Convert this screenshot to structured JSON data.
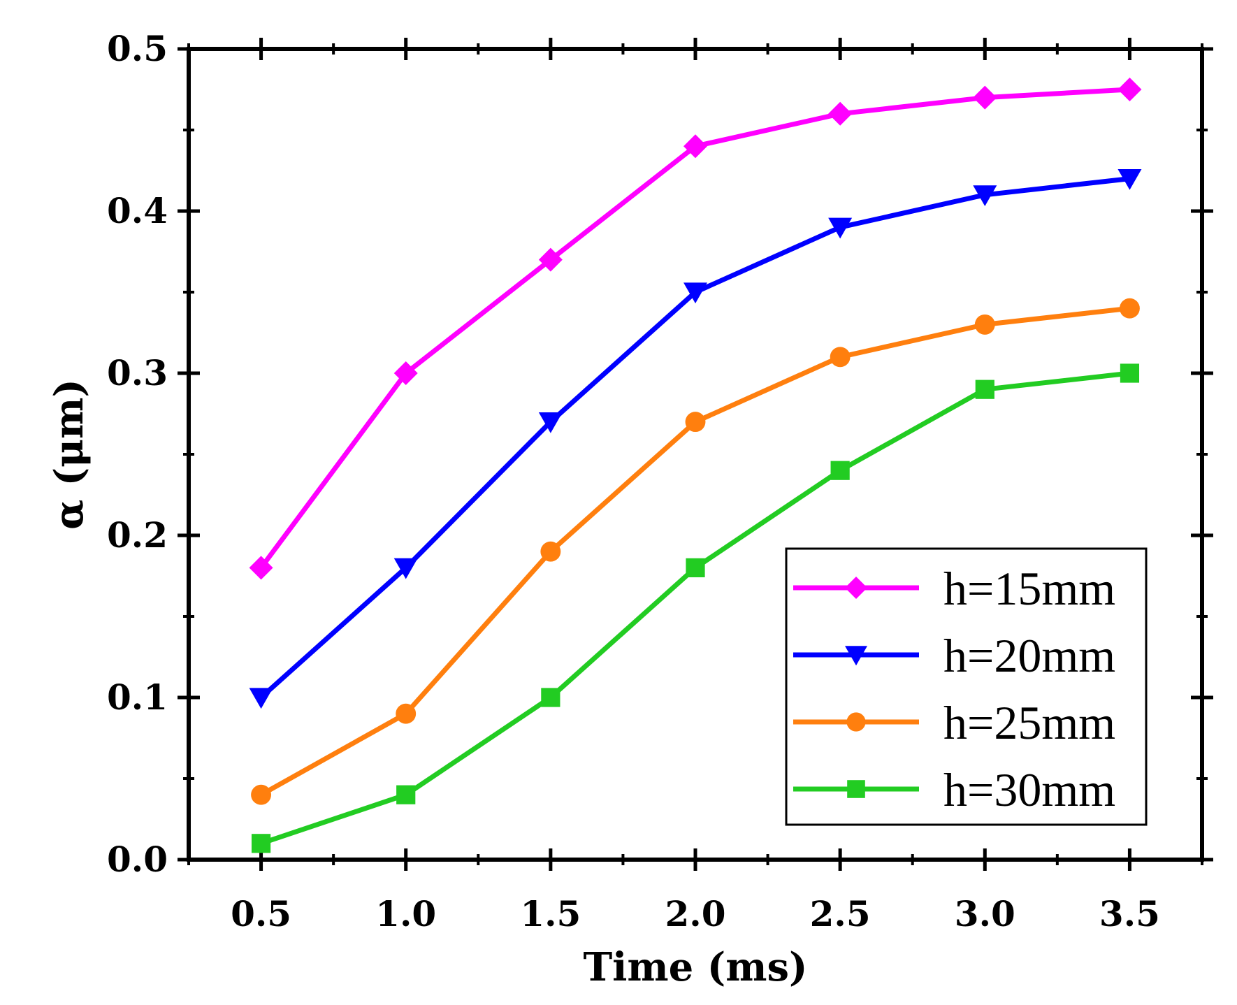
{
  "chart_data": {
    "type": "line",
    "title": "",
    "xlabel": "Time (ms)",
    "ylabel": "α (μm)",
    "xlim": [
      0.25,
      3.75
    ],
    "ylim": [
      0.0,
      0.5
    ],
    "x": [
      0.5,
      1.0,
      1.5,
      2.0,
      2.5,
      3.0,
      3.5
    ],
    "x_tick_labels": [
      "0.5",
      "1.0",
      "1.5",
      "2.0",
      "2.5",
      "3.0",
      "3.5"
    ],
    "y_tick_labels": [
      "0.0",
      "0.1",
      "0.2",
      "0.3",
      "0.4",
      "0.5"
    ],
    "y_ticks": [
      0.0,
      0.1,
      0.2,
      0.3,
      0.4,
      0.5
    ],
    "legend_position": "bottom-right",
    "series": [
      {
        "name": "h=15mm",
        "color": "#ff00ff",
        "marker": "diamond",
        "values": [
          0.18,
          0.3,
          0.37,
          0.44,
          0.46,
          0.47,
          0.475
        ]
      },
      {
        "name": "h=20mm",
        "color": "#0000ff",
        "marker": "triangle-down",
        "values": [
          0.1,
          0.18,
          0.27,
          0.35,
          0.39,
          0.41,
          0.42
        ]
      },
      {
        "name": "h=25mm",
        "color": "#ff7f0e",
        "marker": "circle",
        "values": [
          0.04,
          0.09,
          0.19,
          0.27,
          0.31,
          0.33,
          0.34
        ]
      },
      {
        "name": "h=30mm",
        "color": "#22cc22",
        "marker": "square",
        "values": [
          0.01,
          0.04,
          0.1,
          0.18,
          0.24,
          0.29,
          0.3
        ]
      }
    ]
  }
}
